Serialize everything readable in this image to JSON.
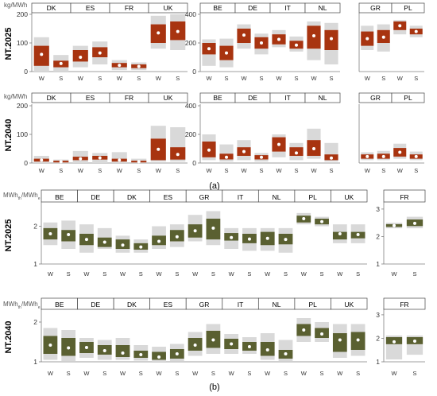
{
  "colors": {
    "band": "#d9d9d9",
    "box_a": "#a83410",
    "box_b": "#5a6031",
    "dot": "#ffffff",
    "axis": "#7f7f7f",
    "text": "#000000"
  },
  "labels": {
    "part_a": "(a)",
    "part_b": "(b)"
  },
  "chart_data": [
    {
      "type": "box",
      "part": "a",
      "scenario": "NT.2025",
      "ylabel": "kg/MWh",
      "ylim": [
        0,
        200
      ],
      "yticks": [
        0,
        100,
        200
      ],
      "groups": [
        "DK",
        "ES",
        "FR",
        "UK"
      ],
      "subcategories": [
        "W",
        "S"
      ],
      "values": [
        {
          "group": "DK",
          "sub": "W",
          "min": 0,
          "q1": 20,
          "q3": 90,
          "max": 120,
          "mean": 60
        },
        {
          "group": "DK",
          "sub": "S",
          "min": 0,
          "q1": 15,
          "q3": 38,
          "max": 58,
          "mean": 28
        },
        {
          "group": "ES",
          "sub": "W",
          "min": 15,
          "q1": 35,
          "q3": 75,
          "max": 90,
          "mean": 50
        },
        {
          "group": "ES",
          "sub": "S",
          "min": 25,
          "q1": 50,
          "q3": 85,
          "max": 105,
          "mean": 65
        },
        {
          "group": "FR",
          "sub": "W",
          "min": 5,
          "q1": 15,
          "q3": 30,
          "max": 40,
          "mean": 22
        },
        {
          "group": "FR",
          "sub": "S",
          "min": 5,
          "q1": 12,
          "q3": 25,
          "max": 32,
          "mean": 18
        },
        {
          "group": "UK",
          "sub": "W",
          "min": 80,
          "q1": 100,
          "q3": 165,
          "max": 195,
          "mean": 135
        },
        {
          "group": "UK",
          "sub": "S",
          "min": 75,
          "q1": 110,
          "q3": 175,
          "max": 200,
          "mean": 140
        }
      ]
    },
    {
      "type": "box",
      "part": "a",
      "scenario": "NT.2025",
      "ylabel": "",
      "ylim": [
        0,
        400
      ],
      "yticks": [
        0,
        200,
        400
      ],
      "groups": [
        "BE",
        "DE",
        "IT",
        "NL"
      ],
      "subcategories": [
        "W",
        "S"
      ],
      "values": [
        {
          "group": "BE",
          "sub": "W",
          "min": 40,
          "q1": 120,
          "q3": 200,
          "max": 225,
          "mean": 160
        },
        {
          "group": "BE",
          "sub": "S",
          "min": 30,
          "q1": 80,
          "q3": 180,
          "max": 230,
          "mean": 130
        },
        {
          "group": "DE",
          "sub": "W",
          "min": 160,
          "q1": 200,
          "q3": 300,
          "max": 330,
          "mean": 255
        },
        {
          "group": "DE",
          "sub": "S",
          "min": 120,
          "q1": 160,
          "q3": 240,
          "max": 265,
          "mean": 200
        },
        {
          "group": "IT",
          "sub": "W",
          "min": 170,
          "q1": 190,
          "q3": 260,
          "max": 290,
          "mean": 225
        },
        {
          "group": "IT",
          "sub": "S",
          "min": 140,
          "q1": 160,
          "q3": 215,
          "max": 245,
          "mean": 185
        },
        {
          "group": "NL",
          "sub": "W",
          "min": 80,
          "q1": 160,
          "q3": 320,
          "max": 350,
          "mean": 250
        },
        {
          "group": "NL",
          "sub": "S",
          "min": 50,
          "q1": 150,
          "q3": 290,
          "max": 340,
          "mean": 230
        }
      ]
    },
    {
      "type": "box",
      "part": "a",
      "scenario": "NT.2025",
      "ylabel": "",
      "ylim": [
        0,
        800
      ],
      "yticks": [],
      "groups": [
        "GR",
        "PL"
      ],
      "subcategories": [
        "W",
        "S"
      ],
      "values": [
        {
          "group": "GR",
          "sub": "W",
          "min": 300,
          "q1": 360,
          "q3": 560,
          "max": 640,
          "mean": 460
        },
        {
          "group": "GR",
          "sub": "S",
          "min": 280,
          "q1": 400,
          "q3": 580,
          "max": 660,
          "mean": 480
        },
        {
          "group": "PL",
          "sub": "W",
          "min": 520,
          "q1": 580,
          "q3": 700,
          "max": 720,
          "mean": 640
        },
        {
          "group": "PL",
          "sub": "S",
          "min": 480,
          "q1": 520,
          "q3": 600,
          "max": 640,
          "mean": 560
        }
      ]
    },
    {
      "type": "box",
      "part": "a",
      "scenario": "NT.2040",
      "ylabel": "kg/MWh",
      "ylim": [
        0,
        200
      ],
      "yticks": [
        0,
        100,
        200
      ],
      "groups": [
        "DK",
        "ES",
        "FR",
        "UK"
      ],
      "subcategories": [
        "W",
        "S"
      ],
      "values": [
        {
          "group": "DK",
          "sub": "W",
          "min": 0,
          "q1": 5,
          "q3": 15,
          "max": 25,
          "mean": 10
        },
        {
          "group": "DK",
          "sub": "S",
          "min": 0,
          "q1": 2,
          "q3": 8,
          "max": 12,
          "mean": 5
        },
        {
          "group": "ES",
          "sub": "W",
          "min": 0,
          "q1": 10,
          "q3": 22,
          "max": 42,
          "mean": 15
        },
        {
          "group": "ES",
          "sub": "S",
          "min": 0,
          "q1": 12,
          "q3": 25,
          "max": 35,
          "mean": 18
        },
        {
          "group": "FR",
          "sub": "W",
          "min": 0,
          "q1": 5,
          "q3": 15,
          "max": 38,
          "mean": 10
        },
        {
          "group": "FR",
          "sub": "S",
          "min": 0,
          "q1": 2,
          "q3": 8,
          "max": 15,
          "mean": 5
        },
        {
          "group": "UK",
          "sub": "W",
          "min": 5,
          "q1": 10,
          "q3": 85,
          "max": 130,
          "mean": 48
        },
        {
          "group": "UK",
          "sub": "S",
          "min": 5,
          "q1": 12,
          "q3": 55,
          "max": 125,
          "mean": 30
        }
      ]
    },
    {
      "type": "box",
      "part": "a",
      "scenario": "NT.2040",
      "ylabel": "",
      "ylim": [
        0,
        400
      ],
      "yticks": [
        0,
        200,
        400
      ],
      "groups": [
        "BE",
        "DE",
        "IT",
        "NL"
      ],
      "subcategories": [
        "W",
        "S"
      ],
      "values": [
        {
          "group": "BE",
          "sub": "W",
          "min": 20,
          "q1": 40,
          "q3": 150,
          "max": 200,
          "mean": 90
        },
        {
          "group": "BE",
          "sub": "S",
          "min": 10,
          "q1": 25,
          "q3": 65,
          "max": 130,
          "mean": 40
        },
        {
          "group": "DE",
          "sub": "W",
          "min": 20,
          "q1": 50,
          "q3": 110,
          "max": 160,
          "mean": 80
        },
        {
          "group": "DE",
          "sub": "S",
          "min": 10,
          "q1": 25,
          "q3": 55,
          "max": 70,
          "mean": 40
        },
        {
          "group": "IT",
          "sub": "W",
          "min": 40,
          "q1": 80,
          "q3": 180,
          "max": 200,
          "mean": 130
        },
        {
          "group": "IT",
          "sub": "S",
          "min": 20,
          "q1": 50,
          "q3": 110,
          "max": 140,
          "mean": 70
        },
        {
          "group": "NL",
          "sub": "W",
          "min": 30,
          "q1": 50,
          "q3": 160,
          "max": 240,
          "mean": 100
        },
        {
          "group": "NL",
          "sub": "S",
          "min": 10,
          "q1": 20,
          "q3": 60,
          "max": 140,
          "mean": 35
        }
      ]
    },
    {
      "type": "box",
      "part": "a",
      "scenario": "NT.2040",
      "ylabel": "",
      "ylim": [
        0,
        800
      ],
      "yticks": [],
      "groups": [
        "GR",
        "PL"
      ],
      "subcategories": [
        "W",
        "S"
      ],
      "values": [
        {
          "group": "GR",
          "sub": "W",
          "min": 40,
          "q1": 60,
          "q3": 120,
          "max": 150,
          "mean": 90
        },
        {
          "group": "GR",
          "sub": "S",
          "min": 40,
          "q1": 60,
          "q3": 130,
          "max": 170,
          "mean": 90
        },
        {
          "group": "PL",
          "sub": "W",
          "min": 60,
          "q1": 90,
          "q3": 210,
          "max": 270,
          "mean": 150
        },
        {
          "group": "PL",
          "sub": "S",
          "min": 40,
          "q1": 60,
          "q3": 120,
          "max": 160,
          "mean": 90
        }
      ]
    },
    {
      "type": "box",
      "part": "b",
      "scenario": "NT.2025",
      "ylabel": "MWh_th/MWh_e",
      "ylim": [
        1,
        2.6
      ],
      "yticks": [
        1,
        2
      ],
      "groups": [
        "BE",
        "DE",
        "DK",
        "ES",
        "GR",
        "IT",
        "NL",
        "PL",
        "UK"
      ],
      "subcategories": [
        "W",
        "S"
      ],
      "values": [
        {
          "group": "BE",
          "sub": "W",
          "min": 1.5,
          "q1": 1.65,
          "q3": 1.95,
          "max": 2.1,
          "mean": 1.8
        },
        {
          "group": "BE",
          "sub": "S",
          "min": 1.4,
          "q1": 1.6,
          "q3": 1.9,
          "max": 2.15,
          "mean": 1.78
        },
        {
          "group": "DE",
          "sub": "W",
          "min": 1.3,
          "q1": 1.5,
          "q3": 1.8,
          "max": 2.05,
          "mean": 1.65
        },
        {
          "group": "DE",
          "sub": "S",
          "min": 1.4,
          "q1": 1.45,
          "q3": 1.7,
          "max": 1.95,
          "mean": 1.58
        },
        {
          "group": "DK",
          "sub": "W",
          "min": 1.3,
          "q1": 1.4,
          "q3": 1.65,
          "max": 1.75,
          "mean": 1.5
        },
        {
          "group": "DK",
          "sub": "S",
          "min": 1.3,
          "q1": 1.38,
          "q3": 1.55,
          "max": 1.65,
          "mean": 1.45
        },
        {
          "group": "ES",
          "sub": "W",
          "min": 1.4,
          "q1": 1.5,
          "q3": 1.75,
          "max": 2.0,
          "mean": 1.6
        },
        {
          "group": "ES",
          "sub": "S",
          "min": 1.45,
          "q1": 1.6,
          "q3": 1.9,
          "max": 2.05,
          "mean": 1.72
        },
        {
          "group": "GR",
          "sub": "W",
          "min": 1.6,
          "q1": 1.7,
          "q3": 2.05,
          "max": 2.3,
          "mean": 1.88
        },
        {
          "group": "GR",
          "sub": "S",
          "min": 1.5,
          "q1": 1.65,
          "q3": 2.2,
          "max": 2.4,
          "mean": 1.95
        },
        {
          "group": "IT",
          "sub": "W",
          "min": 1.4,
          "q1": 1.62,
          "q3": 1.82,
          "max": 1.95,
          "mean": 1.7
        },
        {
          "group": "IT",
          "sub": "S",
          "min": 1.35,
          "q1": 1.55,
          "q3": 1.8,
          "max": 1.95,
          "mean": 1.66
        },
        {
          "group": "NL",
          "sub": "W",
          "min": 1.35,
          "q1": 1.5,
          "q3": 1.85,
          "max": 1.95,
          "mean": 1.68
        },
        {
          "group": "NL",
          "sub": "S",
          "min": 1.3,
          "q1": 1.52,
          "q3": 1.8,
          "max": 1.95,
          "mean": 1.65
        },
        {
          "group": "PL",
          "sub": "W",
          "min": 2.05,
          "q1": 2.1,
          "q3": 2.28,
          "max": 2.35,
          "mean": 2.2
        },
        {
          "group": "PL",
          "sub": "S",
          "min": 2.0,
          "q1": 2.05,
          "q3": 2.2,
          "max": 2.25,
          "mean": 2.12
        },
        {
          "group": "UK",
          "sub": "W",
          "min": 1.55,
          "q1": 1.65,
          "q3": 1.85,
          "max": 2.05,
          "mean": 1.8
        },
        {
          "group": "UK",
          "sub": "S",
          "min": 1.55,
          "q1": 1.68,
          "q3": 1.85,
          "max": 2.05,
          "mean": 1.78
        }
      ]
    },
    {
      "type": "box",
      "part": "b",
      "scenario": "NT.2025",
      "ylabel": "",
      "ylim": [
        1,
        3.2
      ],
      "yticks": [
        1,
        2,
        3
      ],
      "groups": [
        "FR"
      ],
      "subcategories": [
        "W",
        "S"
      ],
      "values": [
        {
          "group": "FR",
          "sub": "W",
          "min": 2.3,
          "q1": 2.35,
          "q3": 2.45,
          "max": 2.5,
          "mean": 2.4
        },
        {
          "group": "FR",
          "sub": "S",
          "min": 2.3,
          "q1": 2.38,
          "q3": 2.62,
          "max": 2.72,
          "mean": 2.48
        }
      ]
    },
    {
      "type": "box",
      "part": "b",
      "scenario": "NT.2040",
      "ylabel": "MWh_th/MWh_e",
      "ylim": [
        1,
        2.3
      ],
      "yticks": [
        1,
        2
      ],
      "groups": [
        "BE",
        "DE",
        "DK",
        "ES",
        "GR",
        "IT",
        "NL",
        "PL",
        "UK"
      ],
      "subcategories": [
        "W",
        "S"
      ],
      "values": [
        {
          "group": "BE",
          "sub": "W",
          "min": 1.05,
          "q1": 1.2,
          "q3": 1.65,
          "max": 1.85,
          "mean": 1.42
        },
        {
          "group": "BE",
          "sub": "S",
          "min": 1.02,
          "q1": 1.15,
          "q3": 1.6,
          "max": 1.8,
          "mean": 1.35
        },
        {
          "group": "DE",
          "sub": "W",
          "min": 1.1,
          "q1": 1.22,
          "q3": 1.5,
          "max": 1.6,
          "mean": 1.36
        },
        {
          "group": "DE",
          "sub": "S",
          "min": 1.05,
          "q1": 1.18,
          "q3": 1.42,
          "max": 1.55,
          "mean": 1.28
        },
        {
          "group": "DK",
          "sub": "W",
          "min": 1.05,
          "q1": 1.12,
          "q3": 1.42,
          "max": 1.6,
          "mean": 1.22
        },
        {
          "group": "DK",
          "sub": "S",
          "min": 1.03,
          "q1": 1.1,
          "q3": 1.28,
          "max": 1.42,
          "mean": 1.18
        },
        {
          "group": "ES",
          "sub": "W",
          "min": 1.0,
          "q1": 1.05,
          "q3": 1.25,
          "max": 1.38,
          "mean": 1.12
        },
        {
          "group": "ES",
          "sub": "S",
          "min": 1.02,
          "q1": 1.08,
          "q3": 1.32,
          "max": 1.45,
          "mean": 1.2
        },
        {
          "group": "GR",
          "sub": "W",
          "min": 1.15,
          "q1": 1.28,
          "q3": 1.6,
          "max": 1.75,
          "mean": 1.42
        },
        {
          "group": "GR",
          "sub": "S",
          "min": 1.2,
          "q1": 1.35,
          "q3": 1.78,
          "max": 1.95,
          "mean": 1.55
        },
        {
          "group": "IT",
          "sub": "W",
          "min": 1.2,
          "q1": 1.32,
          "q3": 1.58,
          "max": 1.7,
          "mean": 1.45
        },
        {
          "group": "IT",
          "sub": "S",
          "min": 1.2,
          "q1": 1.28,
          "q3": 1.5,
          "max": 1.62,
          "mean": 1.38
        },
        {
          "group": "NL",
          "sub": "W",
          "min": 1.05,
          "q1": 1.15,
          "q3": 1.5,
          "max": 1.72,
          "mean": 1.3
        },
        {
          "group": "NL",
          "sub": "S",
          "min": 1.02,
          "q1": 1.08,
          "q3": 1.3,
          "max": 1.55,
          "mean": 1.2
        },
        {
          "group": "PL",
          "sub": "W",
          "min": 1.5,
          "q1": 1.65,
          "q3": 1.95,
          "max": 2.1,
          "mean": 1.8
        },
        {
          "group": "PL",
          "sub": "S",
          "min": 1.5,
          "q1": 1.6,
          "q3": 1.85,
          "max": 2.0,
          "mean": 1.7
        },
        {
          "group": "UK",
          "sub": "W",
          "min": 1.1,
          "q1": 1.25,
          "q3": 1.72,
          "max": 1.95,
          "mean": 1.55
        },
        {
          "group": "UK",
          "sub": "S",
          "min": 1.15,
          "q1": 1.3,
          "q3": 1.75,
          "max": 1.95,
          "mean": 1.55
        }
      ]
    },
    {
      "type": "box",
      "part": "b",
      "scenario": "NT.2040",
      "ylabel": "",
      "ylim": [
        1,
        3.2
      ],
      "yticks": [
        1,
        2,
        3
      ],
      "groups": [
        "FR"
      ],
      "subcategories": [
        "W",
        "S"
      ],
      "values": [
        {
          "group": "FR",
          "sub": "W",
          "min": 1.1,
          "q1": 1.75,
          "q3": 2.05,
          "max": 2.12,
          "mean": 1.85
        },
        {
          "group": "FR",
          "sub": "S",
          "min": 1.3,
          "q1": 1.75,
          "q3": 2.05,
          "max": 2.12,
          "mean": 1.88
        }
      ]
    }
  ]
}
